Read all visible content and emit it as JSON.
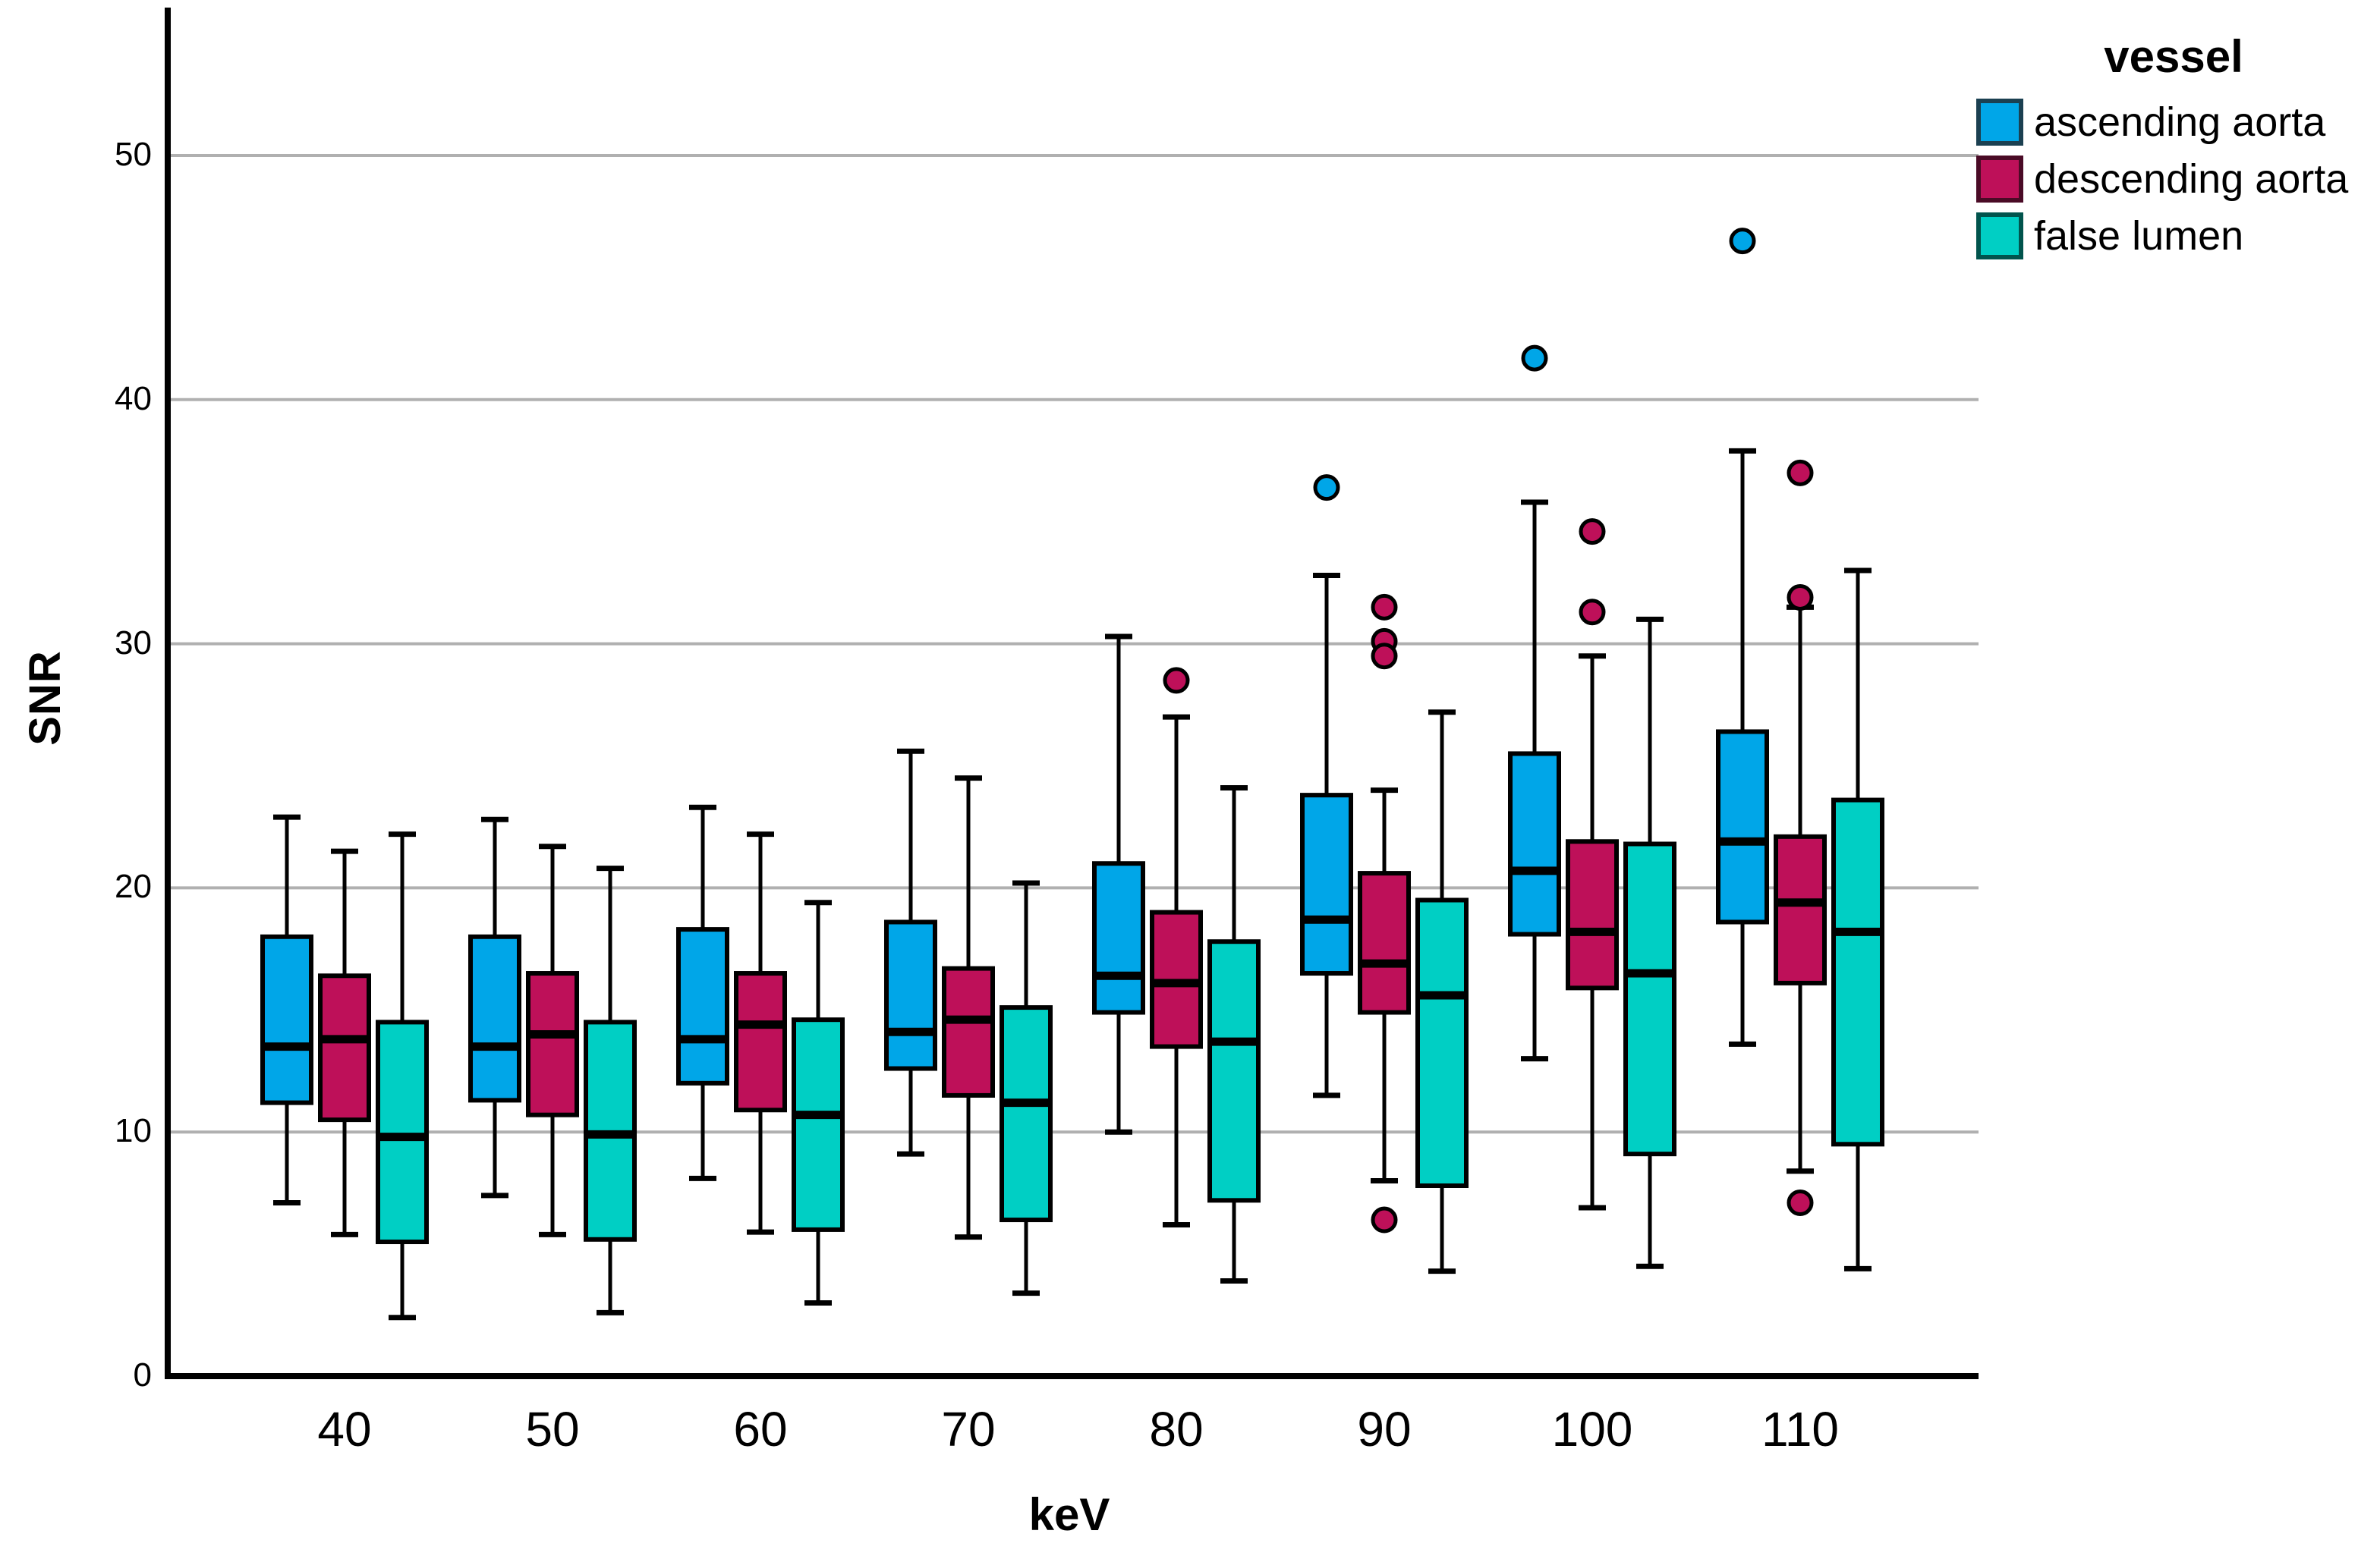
{
  "axes": {
    "x": {
      "title": "keV"
    },
    "y": {
      "title": "SNR",
      "ticks": [
        "0",
        "10",
        "20",
        "30",
        "40",
        "50"
      ]
    }
  },
  "legend": {
    "title": "vessel",
    "entries": [
      {
        "label": "ascending aorta",
        "color": "#00A6E8",
        "border": "#1b4051"
      },
      {
        "label": "descending aorta",
        "color": "#BE1059",
        "border": "#4a0b26"
      },
      {
        "label": "false lumen",
        "color": "#00CFC4",
        "border": "#01544d"
      }
    ]
  },
  "colors": {
    "gridline": "#b0b0b0",
    "axis": "#000000",
    "background": "#ffffff"
  },
  "chart_data": {
    "type": "box",
    "title": "",
    "xlabel": "keV",
    "ylabel": "SNR",
    "ylim": [
      0,
      56
    ],
    "grid": "horizontal",
    "legend_position": "top-right-outside",
    "categories": [
      "40",
      "50",
      "60",
      "70",
      "80",
      "90",
      "100",
      "110"
    ],
    "series": [
      {
        "name": "ascending aorta",
        "color": "#00A6E8",
        "boxes": [
          {
            "whisker_low": 7.1,
            "q1": 11.2,
            "median": 13.5,
            "q3": 18.0,
            "whisker_high": 22.9,
            "outliers": []
          },
          {
            "whisker_low": 7.4,
            "q1": 11.3,
            "median": 13.5,
            "q3": 18.0,
            "whisker_high": 22.8,
            "outliers": []
          },
          {
            "whisker_low": 8.1,
            "q1": 12.0,
            "median": 13.8,
            "q3": 18.3,
            "whisker_high": 23.3,
            "outliers": []
          },
          {
            "whisker_low": 9.1,
            "q1": 12.6,
            "median": 14.1,
            "q3": 18.6,
            "whisker_high": 25.6,
            "outliers": []
          },
          {
            "whisker_low": 10.0,
            "q1": 14.9,
            "median": 16.4,
            "q3": 21.0,
            "whisker_high": 30.3,
            "outliers": []
          },
          {
            "whisker_low": 11.5,
            "q1": 16.5,
            "median": 18.7,
            "q3": 23.8,
            "whisker_high": 32.8,
            "outliers": [
              36.4
            ]
          },
          {
            "whisker_low": 13.0,
            "q1": 18.1,
            "median": 20.7,
            "q3": 25.5,
            "whisker_high": 35.8,
            "outliers": [
              41.7
            ]
          },
          {
            "whisker_low": 13.6,
            "q1": 18.6,
            "median": 21.9,
            "q3": 26.4,
            "whisker_high": 37.9,
            "outliers": [
              46.5
            ]
          }
        ]
      },
      {
        "name": "descending aorta",
        "color": "#BE1059",
        "boxes": [
          {
            "whisker_low": 5.8,
            "q1": 10.5,
            "median": 13.8,
            "q3": 16.4,
            "whisker_high": 21.5,
            "outliers": []
          },
          {
            "whisker_low": 5.8,
            "q1": 10.7,
            "median": 14.0,
            "q3": 16.5,
            "whisker_high": 21.7,
            "outliers": []
          },
          {
            "whisker_low": 5.9,
            "q1": 10.9,
            "median": 14.4,
            "q3": 16.5,
            "whisker_high": 22.2,
            "outliers": []
          },
          {
            "whisker_low": 5.7,
            "q1": 11.5,
            "median": 14.6,
            "q3": 16.7,
            "whisker_high": 24.5,
            "outliers": []
          },
          {
            "whisker_low": 6.2,
            "q1": 13.5,
            "median": 16.1,
            "q3": 19.0,
            "whisker_high": 27.0,
            "outliers": [
              28.5
            ]
          },
          {
            "whisker_low": 8.0,
            "q1": 14.9,
            "median": 16.9,
            "q3": 20.6,
            "whisker_high": 24.0,
            "outliers": [
              31.5,
              30.1,
              29.5,
              6.4
            ]
          },
          {
            "whisker_low": 6.9,
            "q1": 15.9,
            "median": 18.2,
            "q3": 21.9,
            "whisker_high": 29.5,
            "outliers": [
              34.6,
              31.3
            ]
          },
          {
            "whisker_low": 8.4,
            "q1": 16.1,
            "median": 19.4,
            "q3": 22.1,
            "whisker_high": 31.5,
            "outliers": [
              37.0,
              31.9,
              7.1
            ]
          }
        ]
      },
      {
        "name": "false lumen",
        "color": "#00CFC4",
        "boxes": [
          {
            "whisker_low": 2.4,
            "q1": 5.5,
            "median": 9.8,
            "q3": 14.5,
            "whisker_high": 22.2,
            "outliers": []
          },
          {
            "whisker_low": 2.6,
            "q1": 5.6,
            "median": 9.9,
            "q3": 14.5,
            "whisker_high": 20.8,
            "outliers": []
          },
          {
            "whisker_low": 3.0,
            "q1": 6.0,
            "median": 10.7,
            "q3": 14.6,
            "whisker_high": 19.4,
            "outliers": []
          },
          {
            "whisker_low": 3.4,
            "q1": 6.4,
            "median": 11.2,
            "q3": 15.1,
            "whisker_high": 20.2,
            "outliers": []
          },
          {
            "whisker_low": 3.9,
            "q1": 7.2,
            "median": 13.7,
            "q3": 17.8,
            "whisker_high": 24.1,
            "outliers": []
          },
          {
            "whisker_low": 4.3,
            "q1": 7.8,
            "median": 15.6,
            "q3": 19.5,
            "whisker_high": 27.2,
            "outliers": []
          },
          {
            "whisker_low": 4.5,
            "q1": 9.1,
            "median": 16.5,
            "q3": 21.8,
            "whisker_high": 31.0,
            "outliers": []
          },
          {
            "whisker_low": 4.4,
            "q1": 9.5,
            "median": 18.2,
            "q3": 23.6,
            "whisker_high": 33.0,
            "outliers": []
          }
        ]
      }
    ]
  }
}
